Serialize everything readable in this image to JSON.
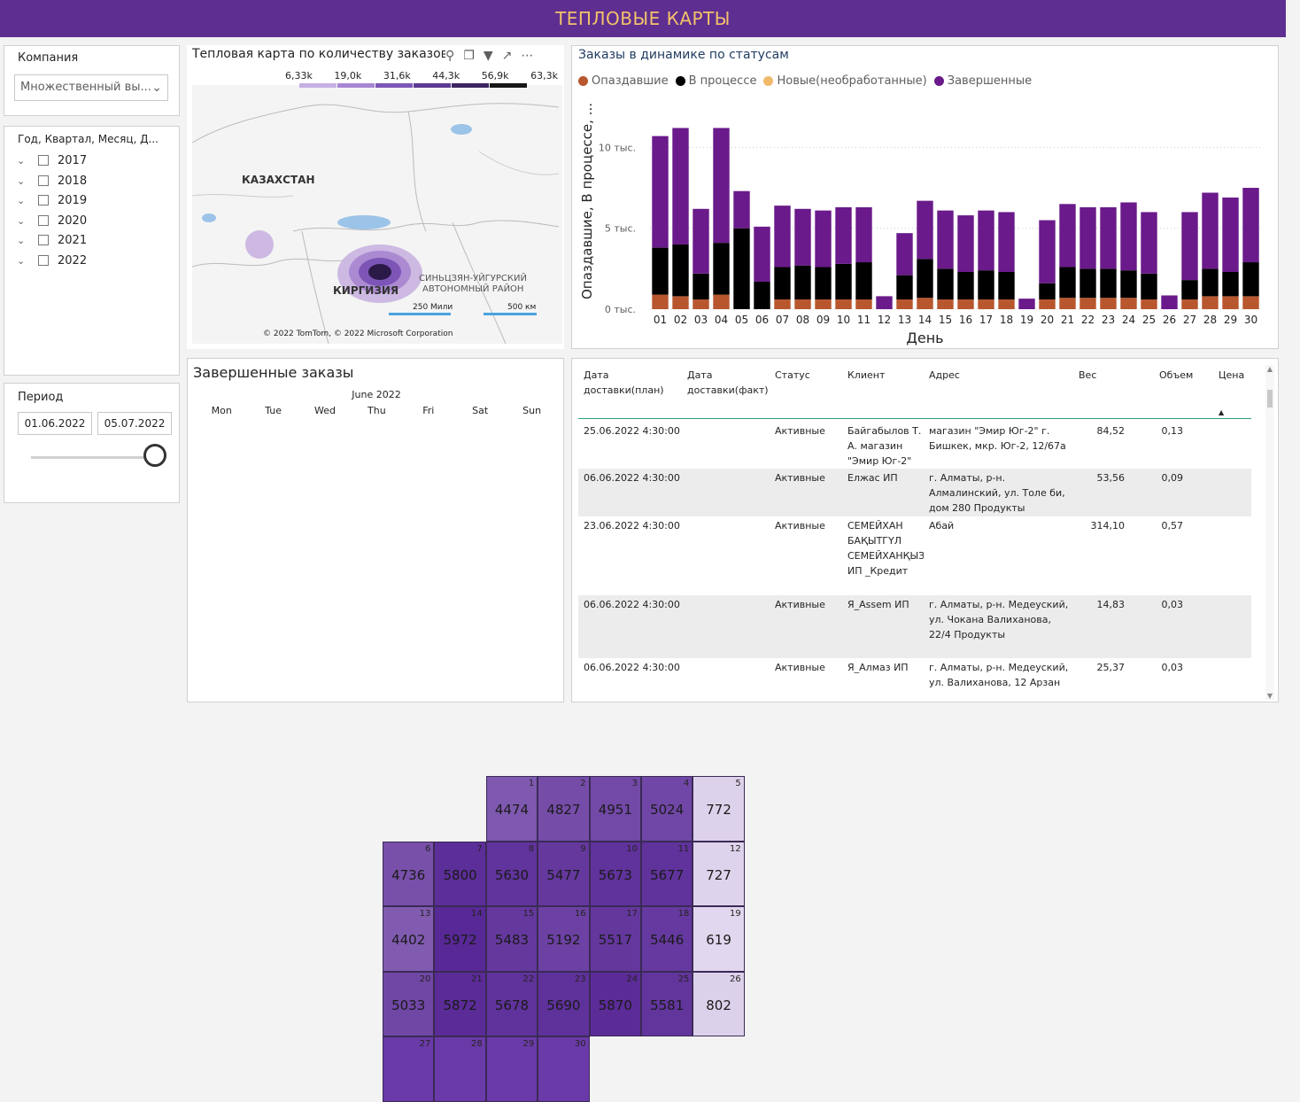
{
  "banner": {
    "title": "ТЕПЛОВЫЕ КАРТЫ"
  },
  "company_slicer": {
    "title": "Компания",
    "value": "Множественный вы..."
  },
  "date_slicer": {
    "title": "Год, Квартал, Месяц, Д...",
    "years": [
      "2017",
      "2018",
      "2019",
      "2020",
      "2021",
      "2022"
    ]
  },
  "period": {
    "title": "Период",
    "start": "01.06.2022",
    "end": "05.07.2022",
    "slider_level": 1.0
  },
  "map": {
    "title": "Тепловая карта по количеству заказов",
    "legend": [
      "6,33k",
      "19,0k",
      "31,6k",
      "44,3k",
      "56,9k",
      "63,3k"
    ],
    "labels": {
      "kz": "КАЗАХСТАН",
      "kg": "КИРГИЗИЯ",
      "xj1": "СИНЬЦЗЯН-УЙГУРСКИЙ",
      "xj2": "АВТОНОМНЫЙ РАЙОН"
    },
    "scale1": "250 Мили",
    "scale2": "500 км",
    "copyright": "© 2022 TomTom, © 2022 Microsoft Corporation"
  },
  "status_chart": {
    "title": "Заказы в динамике по статусам",
    "legend": [
      {
        "name": "Опаздавшие",
        "color": "#b8562e"
      },
      {
        "name": "В процессе",
        "color": "#000000"
      },
      {
        "name": "Новые(необработанные)",
        "color": "#f0b96b"
      },
      {
        "name": "Завершенные",
        "color": "#6a1a8a"
      }
    ],
    "ylabel": "Опаздавшие, В процессе, ...",
    "xlabel": "День",
    "yticks": [
      "10 тыс.",
      "5 тыс.",
      "0 тыс."
    ]
  },
  "chart_data": {
    "type": "bar",
    "stacked": true,
    "categories": [
      "01",
      "02",
      "03",
      "04",
      "05",
      "06",
      "07",
      "08",
      "09",
      "10",
      "11",
      "12",
      "13",
      "14",
      "15",
      "16",
      "17",
      "18",
      "19",
      "20",
      "21",
      "22",
      "23",
      "24",
      "25",
      "26",
      "27",
      "28",
      "29",
      "30"
    ],
    "series": [
      {
        "name": "Опаздавшие",
        "values": [
          900,
          800,
          600,
          900,
          0,
          0,
          600,
          600,
          600,
          600,
          600,
          0,
          600,
          700,
          600,
          600,
          600,
          600,
          0,
          600,
          700,
          700,
          700,
          700,
          600,
          0,
          600,
          800,
          800,
          800
        ]
      },
      {
        "name": "В процессе",
        "values": [
          2900,
          3200,
          1600,
          3200,
          5000,
          1700,
          2000,
          2100,
          2000,
          2200,
          2300,
          0,
          1500,
          2400,
          1900,
          1700,
          1800,
          1700,
          0,
          1000,
          1900,
          1800,
          1800,
          1700,
          1600,
          0,
          1200,
          1700,
          1500,
          2100
        ]
      },
      {
        "name": "Новые(необработанные)",
        "values": [
          0,
          0,
          0,
          0,
          0,
          0,
          0,
          0,
          0,
          0,
          0,
          0,
          0,
          0,
          0,
          0,
          0,
          0,
          0,
          0,
          0,
          0,
          0,
          0,
          0,
          0,
          0,
          0,
          0,
          0
        ]
      },
      {
        "name": "Завершенные",
        "values": [
          6900,
          7200,
          4000,
          7100,
          2300,
          3400,
          3800,
          3500,
          3500,
          3500,
          3400,
          800,
          2600,
          3600,
          3600,
          3500,
          3700,
          3700,
          650,
          3900,
          3900,
          3800,
          3800,
          4200,
          3800,
          850,
          4200,
          4700,
          4600,
          4600
        ]
      }
    ],
    "ylim": [
      0,
      11500
    ],
    "grid": true,
    "legend_position": "top-left"
  },
  "calendar": {
    "title": "Завершенные заказы",
    "month": "June 2022",
    "weekdays": [
      "Mon",
      "Tue",
      "Wed",
      "Thu",
      "Fri",
      "Sat",
      "Sun"
    ],
    "first_weekday_index": 2,
    "days": [
      4474,
      4827,
      4951,
      5024,
      772,
      4736,
      5800,
      5630,
      5477,
      5673,
      5677,
      727,
      4402,
      5972,
      5483,
      5192,
      5517,
      5446,
      619,
      5033,
      5872,
      5678,
      5690,
      5870,
      5581,
      802,
      null,
      null,
      null,
      null
    ]
  },
  "table": {
    "headers": [
      "Дата доставки(план)",
      "Дата доставки(факт)",
      "Статус",
      "Клиент",
      "Адрес",
      "Вес",
      "Объем",
      "Цена"
    ],
    "rows": [
      {
        "plan": "25.06.2022 4:30:00",
        "fact": "",
        "status": "Активные",
        "client": "Байгабылов Т. А. магазин \"Эмир Юг-2\"",
        "addr": "магазин \"Эмир Юг-2\" г. Бишкек, мкр. Юг-2, 12/67а",
        "w": "84,52",
        "v": "0,13"
      },
      {
        "plan": "06.06.2022 4:30:00",
        "fact": "",
        "status": "Активные",
        "client": "Елжас ИП",
        "addr": "г. Алматы, р-н. Алмалинский, ул. Толе би, дом 280 Продукты",
        "w": "53,56",
        "v": "0,09"
      },
      {
        "plan": "23.06.2022 4:30:00",
        "fact": "",
        "status": "Активные",
        "client": "СЕМЕЙХАН БАҚЫТГҮЛ СЕМЕЙХАНҚЫЗЫ ИП _Кредит",
        "addr": "Абай",
        "w": "314,10",
        "v": "0,57"
      },
      {
        "plan": "06.06.2022 4:30:00",
        "fact": "",
        "status": "Активные",
        "client": "Я_Assem ИП",
        "addr": "г. Алматы, р-н. Медеуский, ул. Чокана Валиханова, 22/4 Продукты",
        "w": "14,83",
        "v": "0,03"
      },
      {
        "plan": "06.06.2022 4:30:00",
        "fact": "",
        "status": "Активные",
        "client": "Я_Алмаз ИП",
        "addr": "г. Алматы, р-н. Медеуский, ул. Валиханова, 12 Арзан",
        "w": "25,37",
        "v": "0,03"
      }
    ]
  }
}
